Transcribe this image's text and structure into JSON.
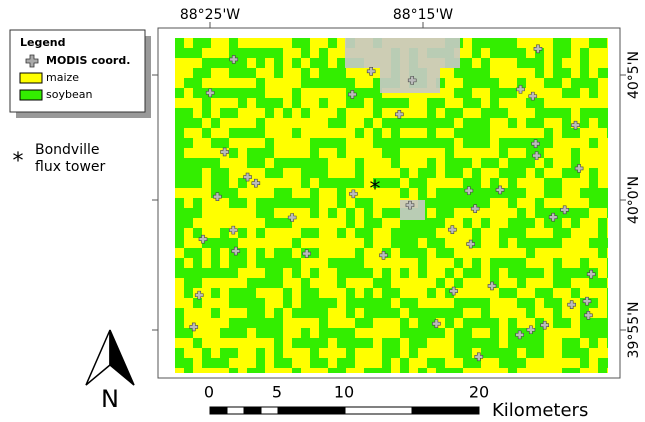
{
  "legend": {
    "title": "Legend",
    "items": [
      {
        "label": "MODIS coord."
      },
      {
        "label": "maize"
      },
      {
        "label": "soybean"
      }
    ]
  },
  "annotation": {
    "lines": [
      "Bondville",
      "flux tower"
    ]
  },
  "axes": {
    "top": [
      "88°25'W",
      "88°15'W"
    ],
    "right": [
      "40°5'N",
      "40°0'N",
      "39°55'N"
    ]
  },
  "scale": {
    "labels": [
      "0",
      "5",
      "10",
      "20"
    ],
    "unit": "Kilometers"
  },
  "north": "N"
}
